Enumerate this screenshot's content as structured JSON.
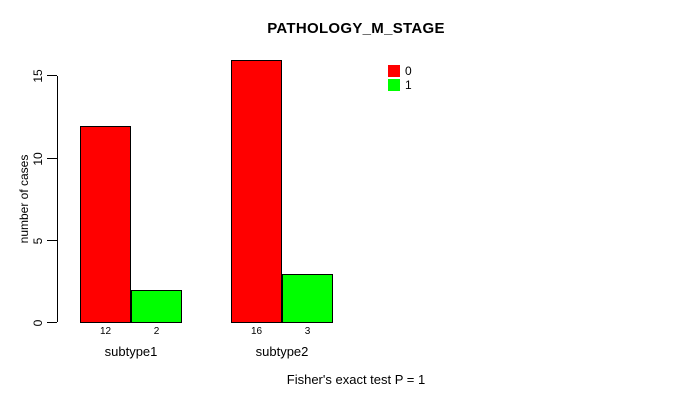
{
  "chart_data": {
    "type": "bar",
    "title": "PATHOLOGY_M_STAGE",
    "ylabel": "number of cases",
    "xlabel": "",
    "categories": [
      "subtype1",
      "subtype2"
    ],
    "series": [
      {
        "name": "0",
        "color": "#ff0000",
        "values": [
          12,
          16
        ]
      },
      {
        "name": "1",
        "color": "#00ff00",
        "values": [
          2,
          3
        ]
      }
    ],
    "bar_count_labels": [
      [
        "12",
        "2"
      ],
      [
        "16",
        "3"
      ]
    ],
    "yticks": [
      0,
      5,
      10,
      15
    ],
    "ylim": [
      0,
      16.4
    ],
    "grid": false,
    "legend_position": "top-right",
    "annotation": "Fisher's exact test P = 1"
  },
  "colors": {
    "background": "#ffffff",
    "text": "#000000",
    "axis": "#000000",
    "bar_border": "#000000",
    "series_0": "#ff0000",
    "series_1": "#00ff00"
  }
}
